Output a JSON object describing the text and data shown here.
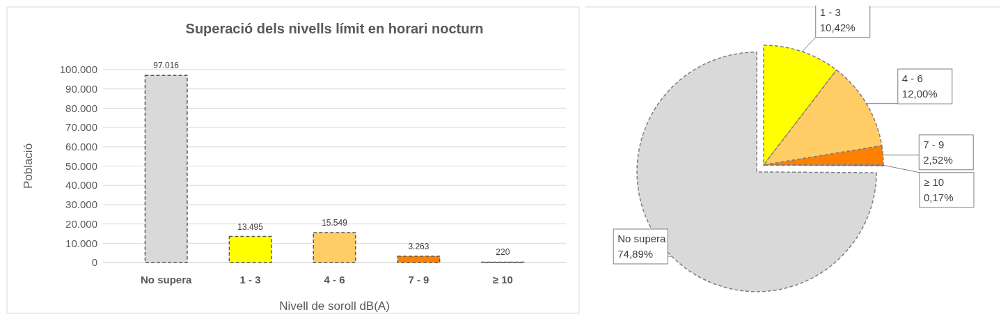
{
  "chart_data": [
    {
      "type": "bar",
      "title": "Superació dels nivells límit en horari nocturn",
      "xlabel": "Nivell de soroll dB(A)",
      "ylabel": "Població",
      "categories": [
        "No supera",
        "1 - 3",
        "4 - 6",
        "7 - 9",
        "≥ 10"
      ],
      "values": [
        97016,
        13495,
        15549,
        3263,
        220
      ],
      "value_labels": [
        "97.016",
        "13.495",
        "15.549",
        "3.263",
        "220"
      ],
      "colors": [
        "#d9d9d9",
        "#ffff00",
        "#ffcc66",
        "#ff8000",
        "#ff5010"
      ],
      "ylim": [
        0,
        100000
      ],
      "yticks": [
        {
          "value": 0,
          "label": "0"
        },
        {
          "value": 10000,
          "label": "10.000"
        },
        {
          "value": 20000,
          "label": "20.000"
        },
        {
          "value": 30000,
          "label": "30.000"
        },
        {
          "value": 40000,
          "label": "40.000"
        },
        {
          "value": 50000,
          "label": "50.000"
        },
        {
          "value": 60000,
          "label": "60.000"
        },
        {
          "value": 70000,
          "label": "70.000"
        },
        {
          "value": 80000,
          "label": "80.000"
        },
        {
          "value": 90000,
          "label": "90.000"
        },
        {
          "value": 100000,
          "label": "100.000"
        }
      ],
      "grid": "y",
      "line_style": "dashed"
    },
    {
      "type": "pie",
      "categories": [
        "1 - 3",
        "4 - 6",
        "7 - 9",
        "≥ 10",
        "No supera"
      ],
      "values": [
        10.42,
        12.0,
        2.52,
        0.17,
        74.89
      ],
      "value_labels": [
        "10,42%",
        "12,00%",
        "2,52%",
        "0,17%",
        "74,89%"
      ],
      "colors": [
        "#ffff00",
        "#ffcc66",
        "#ff8000",
        "#ff5010",
        "#d9d9d9"
      ],
      "line_style": "dashed"
    }
  ]
}
